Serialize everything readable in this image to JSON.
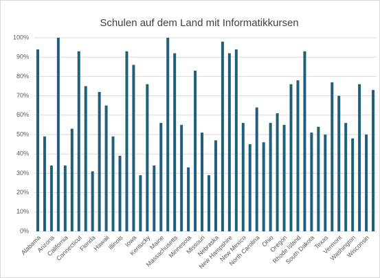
{
  "chart_data": {
    "type": "bar",
    "title": "Schulen auf dem Land mit Informatikkursen",
    "categories": [
      "Alabama",
      null,
      "Arizona",
      null,
      "California",
      null,
      "Connecticut",
      null,
      "Florida",
      null,
      "Hawaii",
      null,
      "Illinois",
      null,
      "Iowa",
      null,
      "Kentucky",
      null,
      "Maine",
      null,
      "Massachusetts",
      null,
      "Minnesota",
      null,
      "Missouri",
      null,
      "Nebraska",
      null,
      "New Hampshire",
      null,
      "New Mexico",
      null,
      "North Carolina",
      null,
      "Ohio",
      null,
      "Oregon",
      null,
      "Rhode Island",
      null,
      "South Dakota",
      null,
      "Texas",
      null,
      "Vermont",
      null,
      "Washington",
      null,
      "Wisconsin",
      null
    ],
    "values": [
      94,
      49,
      34,
      100,
      34,
      53,
      93,
      75,
      31,
      72,
      65,
      49,
      39,
      93,
      86,
      29,
      76,
      34,
      56,
      100,
      92,
      55,
      33,
      83,
      51,
      29,
      47,
      98,
      92,
      94,
      56,
      45,
      64,
      46,
      56,
      61,
      55,
      76,
      78,
      93,
      51,
      54,
      50,
      77,
      70,
      56,
      48,
      76,
      50,
      73
    ],
    "color": "#1f5f7b",
    "ylim": [
      0,
      100
    ],
    "yticks": [
      {
        "value": 0,
        "label": "0%"
      },
      {
        "value": 10,
        "label": "10%"
      },
      {
        "value": 20,
        "label": "20%"
      },
      {
        "value": 30,
        "label": "30%"
      },
      {
        "value": 40,
        "label": "40%"
      },
      {
        "value": 50,
        "label": "50%"
      },
      {
        "value": 60,
        "label": "60%"
      },
      {
        "value": 70,
        "label": "70%"
      },
      {
        "value": 80,
        "label": "80%"
      },
      {
        "value": 90,
        "label": "90%"
      },
      {
        "value": 100,
        "label": "100%"
      }
    ],
    "grid": true
  }
}
